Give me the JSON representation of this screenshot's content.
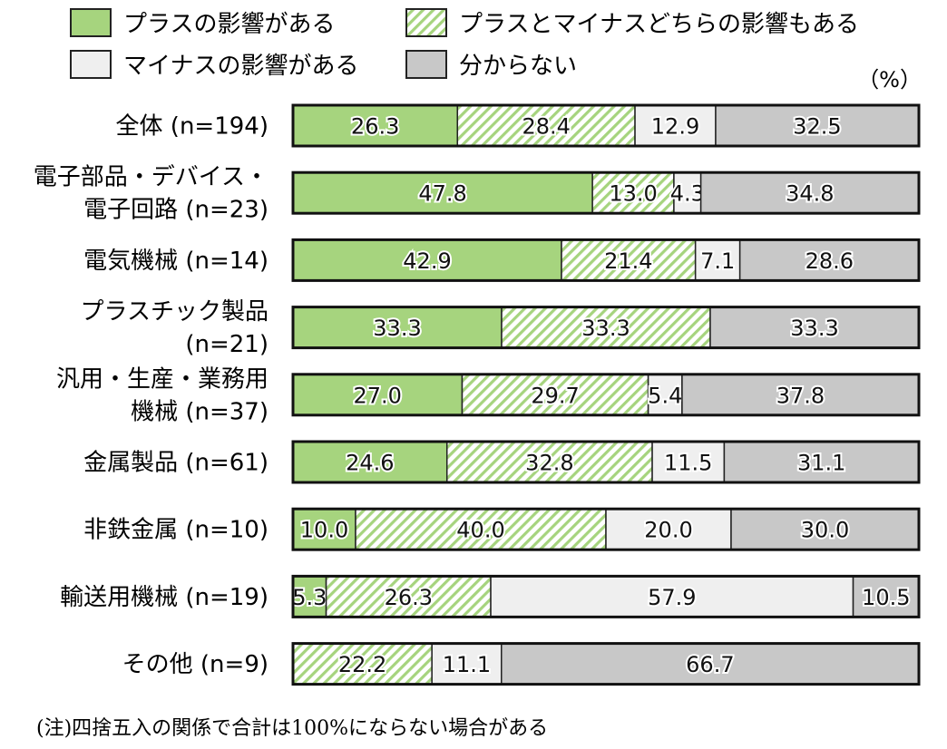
{
  "chart_data": {
    "type": "bar",
    "stacked": true,
    "orientation": "horizontal",
    "unit": "（%）",
    "note": "(注)四捨五入の関係で合計は100%にならない場合がある",
    "legend_placement": "top",
    "categories": [
      [
        "全体 (n=194)"
      ],
      [
        "電子部品・デバイス・",
        "電子回路 (n=23)"
      ],
      [
        "電気機械 (n=14)"
      ],
      [
        "プラスチック製品",
        "(n=21)"
      ],
      [
        "汎用・生産・業務用",
        "機械 (n=37)"
      ],
      [
        "金属製品 (n=61)"
      ],
      [
        "非鉄金属 (n=10)"
      ],
      [
        "輸送用機械 (n=19)"
      ],
      [
        "その他 (n=9)"
      ]
    ],
    "series": [
      {
        "name": "プラスの影響がある",
        "color": "#a6d47e",
        "pattern": "solid",
        "values": [
          26.3,
          47.8,
          42.9,
          33.3,
          27.0,
          24.6,
          10.0,
          5.3,
          0
        ]
      },
      {
        "name": "プラスとマイナスどちらの影響もある",
        "color": "#a6d47e",
        "pattern": "hatch",
        "values": [
          28.4,
          13.0,
          21.4,
          33.3,
          29.7,
          32.8,
          40.0,
          26.3,
          22.2
        ]
      },
      {
        "name": "マイナスの影響がある",
        "color": "#efefef",
        "pattern": "solid",
        "values": [
          12.9,
          4.3,
          7.1,
          0,
          5.4,
          11.5,
          20.0,
          57.9,
          11.1
        ]
      },
      {
        "name": "分からない",
        "color": "#c8c8c8",
        "pattern": "solid",
        "values": [
          32.5,
          34.8,
          28.6,
          33.3,
          37.8,
          31.1,
          30.0,
          10.5,
          66.7
        ]
      }
    ],
    "value_labels": [
      [
        "26.3",
        "28.4",
        "12.9",
        "32.5"
      ],
      [
        "47.8",
        "13.0",
        "4.3",
        "34.8"
      ],
      [
        "42.9",
        "21.4",
        "7.1",
        "28.6"
      ],
      [
        "33.3",
        "33.3",
        "",
        "33.3"
      ],
      [
        "27.0",
        "29.7",
        "5.4",
        "37.8"
      ],
      [
        "24.6",
        "32.8",
        "11.5",
        "31.1"
      ],
      [
        "10.0",
        "40.0",
        "20.0",
        "30.0"
      ],
      [
        "5.3",
        "26.3",
        "57.9",
        "10.5"
      ],
      [
        "",
        "22.2",
        "11.1",
        "66.7"
      ]
    ],
    "xlim": [
      0,
      100
    ]
  }
}
